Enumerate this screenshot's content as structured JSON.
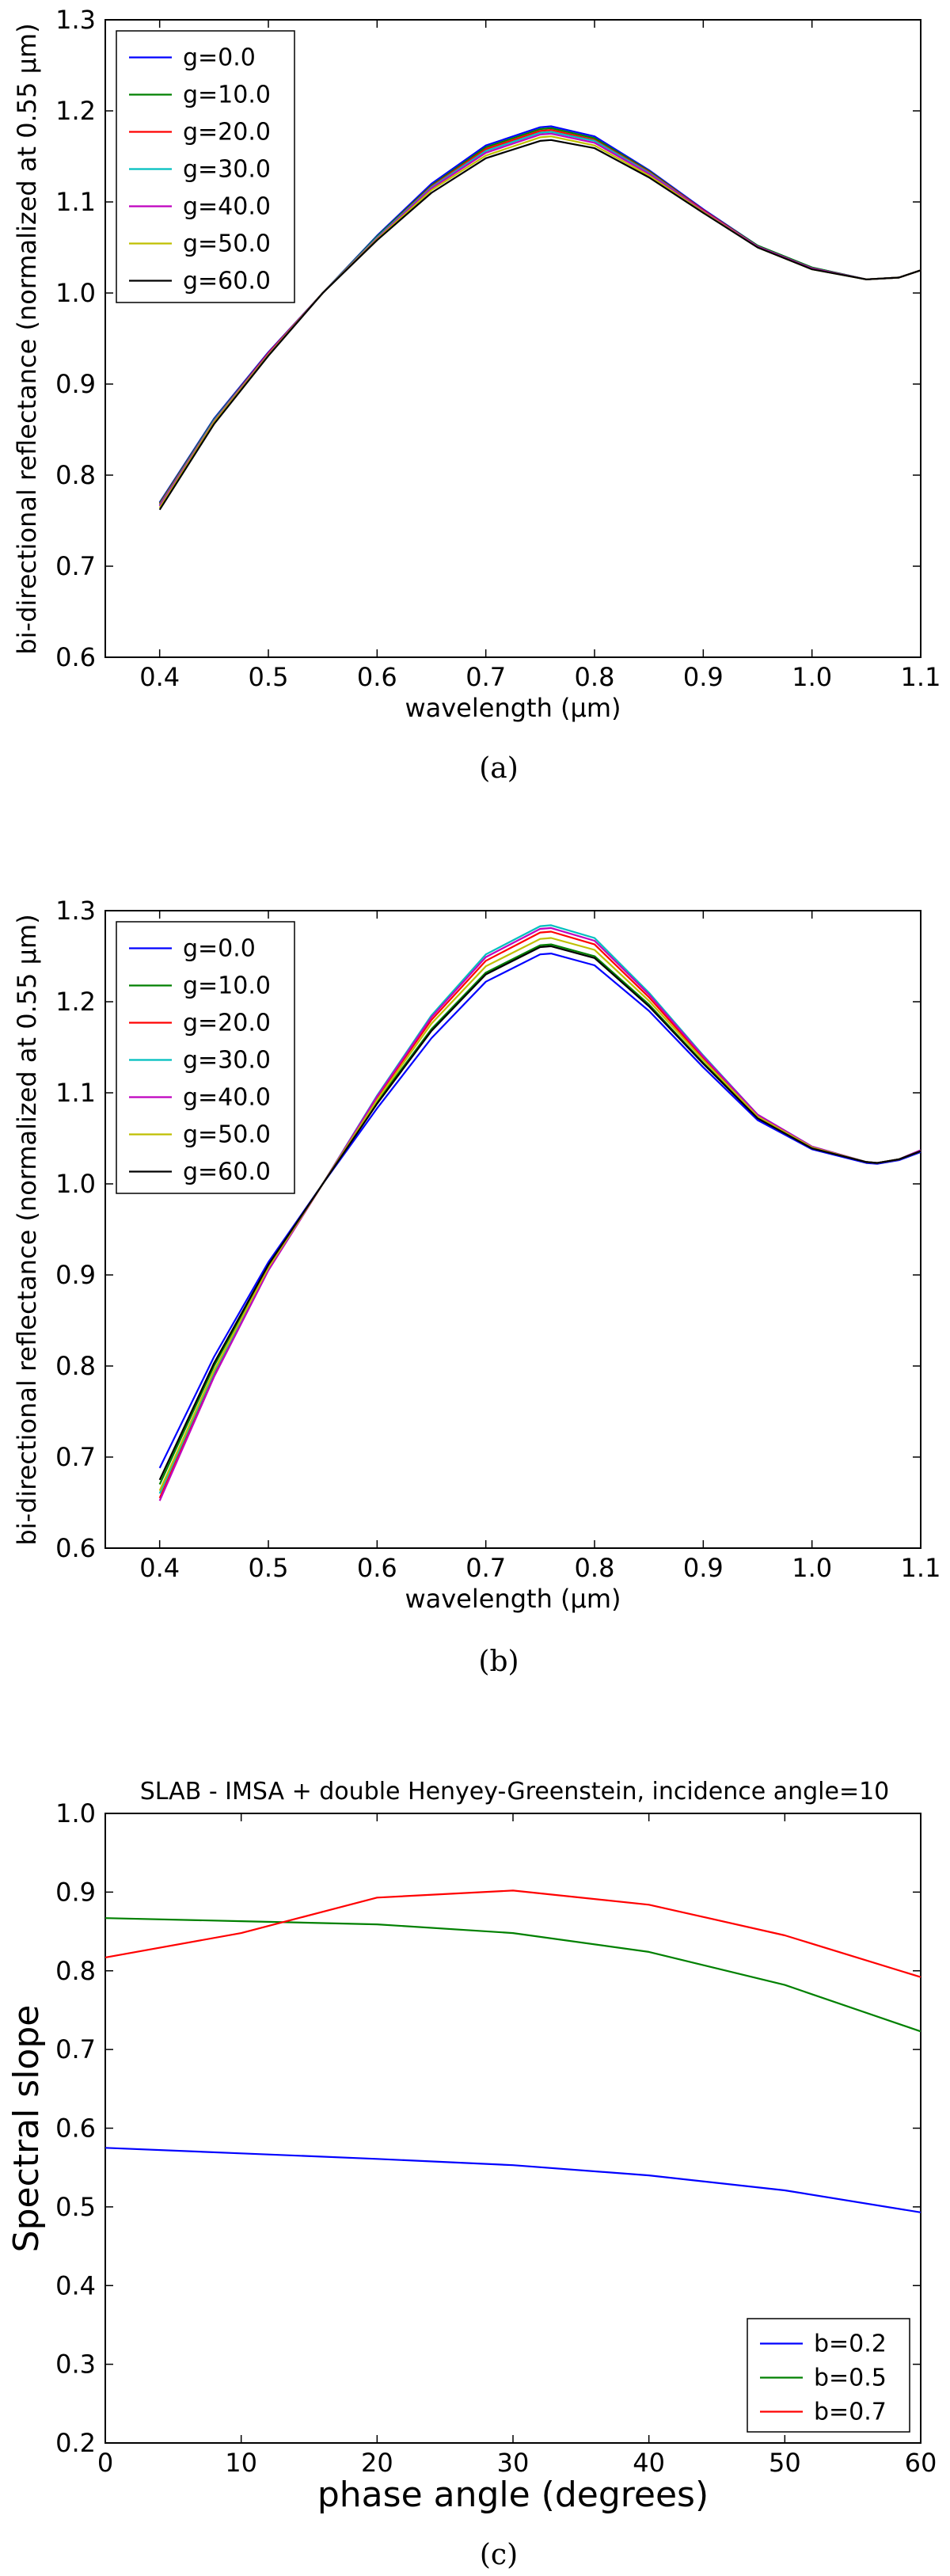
{
  "chart_data": [
    {
      "type": "line",
      "title": "",
      "xlabel": "wavelength (μm)",
      "ylabel": "bi-directional reflectance (normalized at 0.55 μm)",
      "xlim": [
        0.35,
        1.1
      ],
      "ylim": [
        0.6,
        1.3
      ],
      "x_ticks": [
        "0.4",
        "0.5",
        "0.6",
        "0.7",
        "0.8",
        "0.9",
        "1.0",
        "1.1"
      ],
      "y_ticks": [
        "0.6",
        "0.7",
        "0.8",
        "0.9",
        "1.0",
        "1.1",
        "1.2",
        "1.3"
      ],
      "legend_position": "top-left",
      "caption": "(a)",
      "series": [
        {
          "name": "g=0.0",
          "color": "#0000ff",
          "x": [
            0.4,
            0.45,
            0.5,
            0.55,
            0.6,
            0.65,
            0.7,
            0.75,
            0.76,
            0.8,
            0.85,
            0.9,
            0.95,
            1.0,
            1.05,
            1.08,
            1.1
          ],
          "y": [
            0.77,
            0.862,
            0.935,
            1.0,
            1.063,
            1.12,
            1.162,
            1.182,
            1.183,
            1.172,
            1.135,
            1.092,
            1.052,
            1.028,
            1.015,
            1.017,
            1.025
          ]
        },
        {
          "name": "g=10.0",
          "color": "#008000",
          "x": [
            0.4,
            0.45,
            0.5,
            0.55,
            0.6,
            0.65,
            0.7,
            0.75,
            0.76,
            0.8,
            0.85,
            0.9,
            0.95,
            1.0,
            1.05,
            1.08,
            1.1
          ],
          "y": [
            0.769,
            0.861,
            0.934,
            1.0,
            1.062,
            1.118,
            1.16,
            1.18,
            1.181,
            1.17,
            1.134,
            1.091,
            1.052,
            1.028,
            1.015,
            1.017,
            1.025
          ]
        },
        {
          "name": "g=20.0",
          "color": "#ff0000",
          "x": [
            0.4,
            0.45,
            0.5,
            0.55,
            0.6,
            0.65,
            0.7,
            0.75,
            0.76,
            0.8,
            0.85,
            0.9,
            0.95,
            1.0,
            1.05,
            1.08,
            1.1
          ],
          "y": [
            0.768,
            0.86,
            0.934,
            1.0,
            1.061,
            1.117,
            1.158,
            1.178,
            1.179,
            1.168,
            1.133,
            1.091,
            1.051,
            1.027,
            1.015,
            1.017,
            1.025
          ]
        },
        {
          "name": "g=30.0",
          "color": "#00bfbf",
          "x": [
            0.4,
            0.45,
            0.5,
            0.55,
            0.6,
            0.65,
            0.7,
            0.75,
            0.76,
            0.8,
            0.85,
            0.9,
            0.95,
            1.0,
            1.05,
            1.08,
            1.1
          ],
          "y": [
            0.767,
            0.86,
            0.933,
            1.0,
            1.061,
            1.116,
            1.156,
            1.176,
            1.177,
            1.167,
            1.132,
            1.09,
            1.051,
            1.027,
            1.015,
            1.017,
            1.025
          ]
        },
        {
          "name": "g=40.0",
          "color": "#bf00bf",
          "x": [
            0.4,
            0.45,
            0.5,
            0.55,
            0.6,
            0.65,
            0.7,
            0.75,
            0.76,
            0.8,
            0.85,
            0.9,
            0.95,
            1.0,
            1.05,
            1.08,
            1.1
          ],
          "y": [
            0.766,
            0.859,
            0.933,
            1.0,
            1.06,
            1.115,
            1.154,
            1.174,
            1.175,
            1.165,
            1.131,
            1.09,
            1.051,
            1.027,
            1.015,
            1.017,
            1.025
          ]
        },
        {
          "name": "g=50.0",
          "color": "#bfbf00",
          "x": [
            0.4,
            0.45,
            0.5,
            0.55,
            0.6,
            0.65,
            0.7,
            0.75,
            0.76,
            0.8,
            0.85,
            0.9,
            0.95,
            1.0,
            1.05,
            1.08,
            1.1
          ],
          "y": [
            0.764,
            0.858,
            0.932,
            1.0,
            1.059,
            1.113,
            1.151,
            1.171,
            1.172,
            1.162,
            1.129,
            1.089,
            1.05,
            1.026,
            1.015,
            1.017,
            1.025
          ]
        },
        {
          "name": "g=60.0",
          "color": "#000000",
          "x": [
            0.4,
            0.45,
            0.5,
            0.55,
            0.6,
            0.65,
            0.7,
            0.75,
            0.76,
            0.8,
            0.85,
            0.9,
            0.95,
            1.0,
            1.05,
            1.08,
            1.1
          ],
          "y": [
            0.762,
            0.856,
            0.931,
            1.0,
            1.058,
            1.11,
            1.148,
            1.167,
            1.168,
            1.159,
            1.127,
            1.088,
            1.05,
            1.026,
            1.015,
            1.017,
            1.025
          ]
        }
      ]
    },
    {
      "type": "line",
      "title": "",
      "xlabel": "wavelength (μm)",
      "ylabel": "bi-directional reflectance (normalized at 0.55 μm)",
      "xlim": [
        0.35,
        1.1
      ],
      "ylim": [
        0.6,
        1.3
      ],
      "x_ticks": [
        "0.4",
        "0.5",
        "0.6",
        "0.7",
        "0.8",
        "0.9",
        "1.0",
        "1.1"
      ],
      "y_ticks": [
        "0.6",
        "0.7",
        "0.8",
        "0.9",
        "1.0",
        "1.1",
        "1.2",
        "1.3"
      ],
      "legend_position": "top-left",
      "caption": "(b)",
      "series": [
        {
          "name": "g=0.0",
          "color": "#0000ff",
          "x": [
            0.4,
            0.45,
            0.5,
            0.55,
            0.6,
            0.65,
            0.7,
            0.75,
            0.76,
            0.8,
            0.85,
            0.9,
            0.95,
            1.0,
            1.05,
            1.06,
            1.08,
            1.1
          ],
          "y": [
            0.688,
            0.81,
            0.914,
            1.0,
            1.083,
            1.16,
            1.222,
            1.252,
            1.253,
            1.24,
            1.19,
            1.128,
            1.07,
            1.038,
            1.023,
            1.022,
            1.026,
            1.035
          ]
        },
        {
          "name": "g=10.0",
          "color": "#008000",
          "x": [
            0.4,
            0.45,
            0.5,
            0.55,
            0.6,
            0.65,
            0.7,
            0.75,
            0.76,
            0.8,
            0.85,
            0.9,
            0.95,
            1.0,
            1.05,
            1.06,
            1.08,
            1.1
          ],
          "y": [
            0.67,
            0.8,
            0.91,
            1.0,
            1.09,
            1.17,
            1.232,
            1.262,
            1.263,
            1.25,
            1.197,
            1.133,
            1.073,
            1.04,
            1.024,
            1.023,
            1.027,
            1.036
          ]
        },
        {
          "name": "g=20.0",
          "color": "#ff0000",
          "x": [
            0.4,
            0.45,
            0.5,
            0.55,
            0.6,
            0.65,
            0.7,
            0.75,
            0.76,
            0.8,
            0.85,
            0.9,
            0.95,
            1.0,
            1.05,
            1.06,
            1.08,
            1.1
          ],
          "y": [
            0.655,
            0.79,
            0.906,
            1.0,
            1.095,
            1.18,
            1.245,
            1.276,
            1.277,
            1.263,
            1.205,
            1.138,
            1.075,
            1.04,
            1.024,
            1.023,
            1.027,
            1.037
          ]
        },
        {
          "name": "g=30.0",
          "color": "#00bfbf",
          "x": [
            0.4,
            0.45,
            0.5,
            0.55,
            0.6,
            0.65,
            0.7,
            0.75,
            0.76,
            0.8,
            0.85,
            0.9,
            0.95,
            1.0,
            1.05,
            1.06,
            1.08,
            1.1
          ],
          "y": [
            0.66,
            0.793,
            0.907,
            1.0,
            1.097,
            1.185,
            1.252,
            1.283,
            1.284,
            1.27,
            1.21,
            1.141,
            1.076,
            1.041,
            1.024,
            1.023,
            1.027,
            1.037
          ]
        },
        {
          "name": "g=40.0",
          "color": "#bf00bf",
          "x": [
            0.4,
            0.45,
            0.5,
            0.55,
            0.6,
            0.65,
            0.7,
            0.75,
            0.76,
            0.8,
            0.85,
            0.9,
            0.95,
            1.0,
            1.05,
            1.06,
            1.08,
            1.1
          ],
          "y": [
            0.652,
            0.788,
            0.905,
            1.0,
            1.096,
            1.183,
            1.249,
            1.28,
            1.281,
            1.267,
            1.208,
            1.14,
            1.076,
            1.041,
            1.024,
            1.023,
            1.027,
            1.037
          ]
        },
        {
          "name": "g=50.0",
          "color": "#bfbf00",
          "x": [
            0.4,
            0.45,
            0.5,
            0.55,
            0.6,
            0.65,
            0.7,
            0.75,
            0.76,
            0.8,
            0.85,
            0.9,
            0.95,
            1.0,
            1.05,
            1.06,
            1.08,
            1.1
          ],
          "y": [
            0.663,
            0.795,
            0.908,
            1.0,
            1.092,
            1.176,
            1.239,
            1.269,
            1.27,
            1.257,
            1.201,
            1.136,
            1.074,
            1.04,
            1.024,
            1.023,
            1.027,
            1.036
          ]
        },
        {
          "name": "g=60.0",
          "color": "#000000",
          "x": [
            0.4,
            0.45,
            0.5,
            0.55,
            0.6,
            0.65,
            0.7,
            0.75,
            0.76,
            0.8,
            0.85,
            0.9,
            0.95,
            1.0,
            1.05,
            1.06,
            1.08,
            1.1
          ],
          "y": [
            0.675,
            0.803,
            0.911,
            1.0,
            1.088,
            1.168,
            1.23,
            1.26,
            1.261,
            1.248,
            1.195,
            1.132,
            1.072,
            1.039,
            1.024,
            1.023,
            1.027,
            1.036
          ]
        }
      ]
    },
    {
      "type": "line",
      "title": "SLAB - IMSA + double Henyey-Greenstein, incidence angle=10",
      "xlabel": "phase angle (degrees)",
      "ylabel": "Spectral slope",
      "xlim": [
        0,
        60
      ],
      "ylim": [
        0.2,
        1.0
      ],
      "x_ticks": [
        "0",
        "10",
        "20",
        "30",
        "40",
        "50",
        "60"
      ],
      "y_ticks": [
        "0.2",
        "0.3",
        "0.4",
        "0.5",
        "0.6",
        "0.7",
        "0.8",
        "0.9",
        "1.0"
      ],
      "legend_position": "bottom-right",
      "caption": "(c)",
      "series": [
        {
          "name": "b=0.2",
          "color": "#0000ff",
          "x": [
            0,
            10,
            20,
            30,
            40,
            50,
            60
          ],
          "y": [
            0.575,
            0.568,
            0.561,
            0.553,
            0.54,
            0.521,
            0.493
          ]
        },
        {
          "name": "b=0.5",
          "color": "#008000",
          "x": [
            0,
            10,
            20,
            30,
            40,
            50,
            60
          ],
          "y": [
            0.867,
            0.863,
            0.859,
            0.848,
            0.824,
            0.782,
            0.723
          ]
        },
        {
          "name": "b=0.7",
          "color": "#ff0000",
          "x": [
            0,
            10,
            20,
            30,
            40,
            50,
            60
          ],
          "y": [
            0.817,
            0.848,
            0.893,
            0.902,
            0.884,
            0.845,
            0.792
          ]
        }
      ]
    }
  ]
}
